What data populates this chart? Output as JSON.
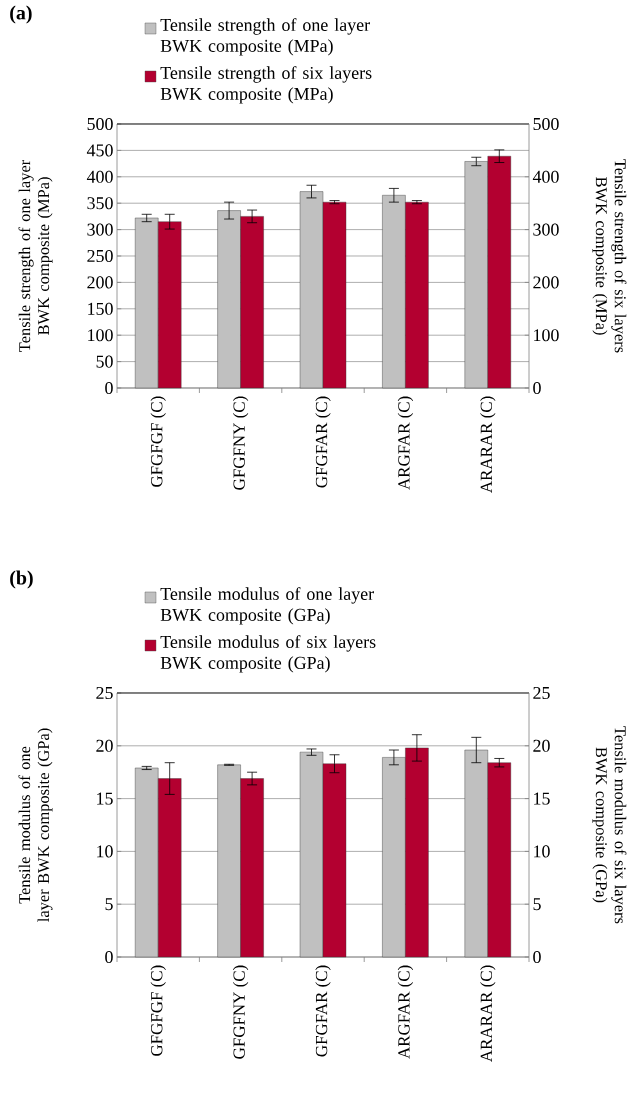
{
  "chart_data": [
    {
      "type": "bar",
      "title": "(a)",
      "categories": [
        "GFGFGF (C)",
        "GFGFNY (C)",
        "GFGFAR (C)",
        "ARGFAR (C)",
        "ARARAR (C)"
      ],
      "ylabel": "Tensile strength of one layer BWK composite (MPa)",
      "y2label": "Tensile strength of six layers BWK composite (MPa)",
      "ylim": [
        0,
        500
      ],
      "yticks": [
        0,
        50,
        100,
        150,
        200,
        250,
        300,
        350,
        400,
        450,
        500
      ],
      "y2lim": [
        0,
        500
      ],
      "y2ticks": [
        0,
        100,
        200,
        300,
        400,
        500
      ],
      "grid": "y",
      "legend": "top",
      "series": [
        {
          "name": "Tensile strength of one layer BWK composite (MPa)",
          "color": "#c0c0c0",
          "values": [
            322,
            336,
            372,
            365,
            429
          ],
          "errors": [
            7,
            16,
            12,
            13,
            8
          ]
        },
        {
          "name": "Tensile strength of six layers BWK composite (MPa)",
          "color": "#b30030",
          "values": [
            315,
            325,
            352,
            352,
            439
          ],
          "errors": [
            14,
            12,
            3,
            3,
            12
          ]
        }
      ]
    },
    {
      "type": "bar",
      "title": "(b)",
      "categories": [
        "GFGFGF (C)",
        "GFGFNY (C)",
        "GFGFAR (C)",
        "ARGFAR (C)",
        "ARARAR (C)"
      ],
      "ylabel": "Tensile modulus of one layer BWK composite (GPa)",
      "y2label": "Tensile modulus of six layers BWK composite (GPa)",
      "ylim": [
        0,
        25
      ],
      "yticks": [
        0,
        5,
        10,
        15,
        20,
        25
      ],
      "y2lim": [
        0,
        25
      ],
      "y2ticks": [
        0,
        5,
        10,
        15,
        20,
        25
      ],
      "grid": "y",
      "legend": "top",
      "series": [
        {
          "name": "Tensile modulus of one layer BWK composite (GPa)",
          "color": "#c0c0c0",
          "values": [
            17.9,
            18.2,
            19.4,
            18.9,
            19.6
          ],
          "errors": [
            0.15,
            0.05,
            0.3,
            0.7,
            1.2
          ]
        },
        {
          "name": "Tensile modulus of six layers BWK composite (GPa)",
          "color": "#b30030",
          "values": [
            16.9,
            16.9,
            18.3,
            19.8,
            18.4
          ],
          "errors": [
            1.5,
            0.6,
            0.85,
            1.25,
            0.4
          ]
        }
      ]
    }
  ]
}
